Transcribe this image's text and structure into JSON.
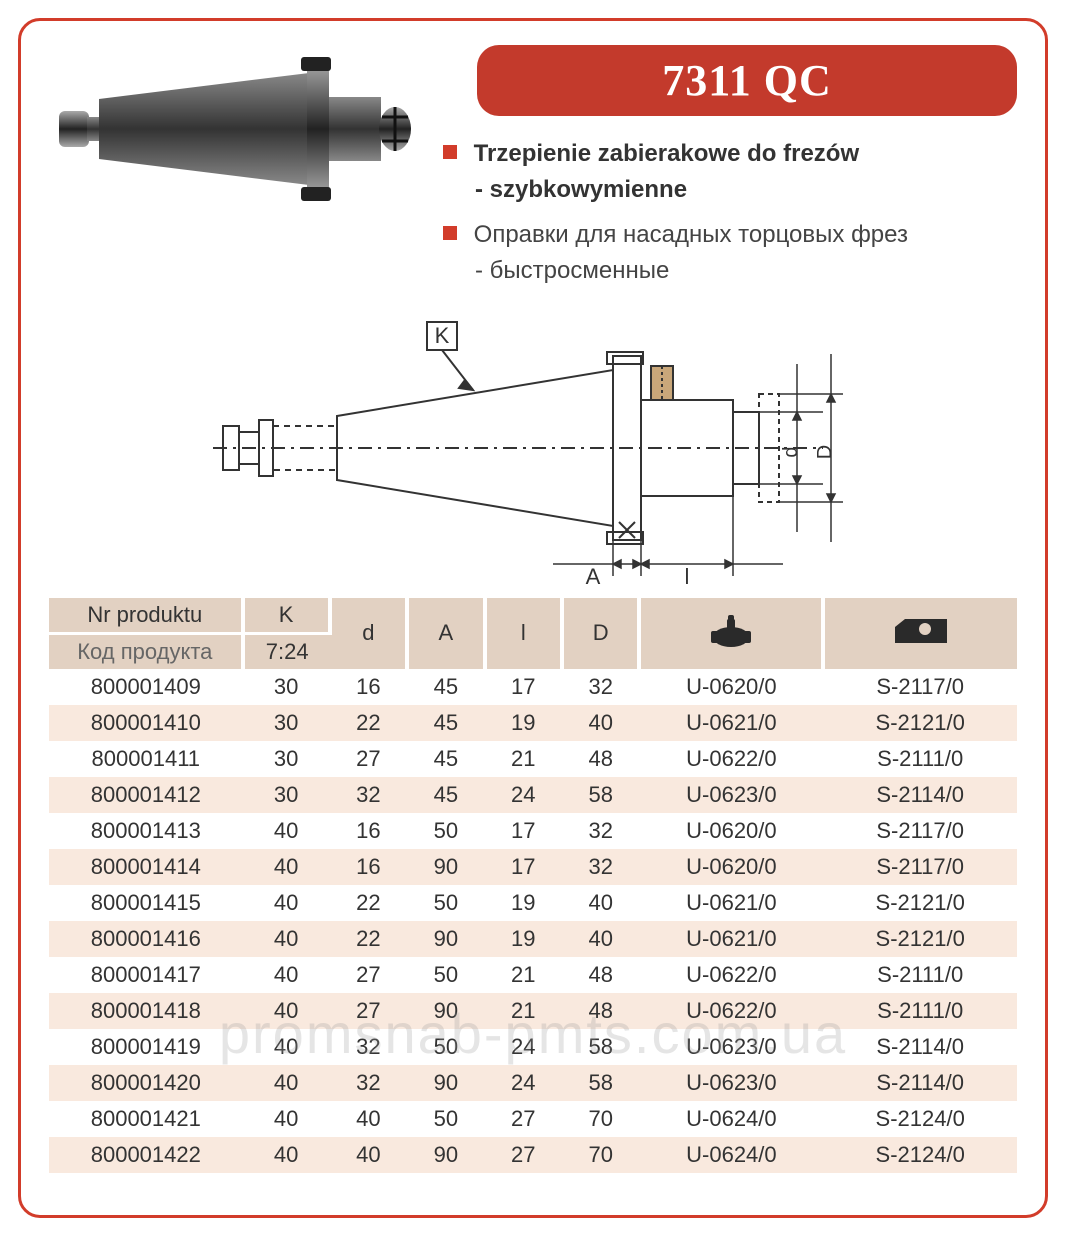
{
  "title": "7311 QC",
  "desc": {
    "line1_bold": "Trzepienie zabierakowe do frezów",
    "line1_sub": "- szybkowymienne",
    "line2": "Оправки для насадных торцовых фрез",
    "line2_sub": "- быстросменные"
  },
  "diagram": {
    "labels": {
      "K": "K",
      "A": "A",
      "l": "l",
      "d": "d",
      "D": "D"
    }
  },
  "table": {
    "headers": {
      "nr_top": "Nr produktu",
      "nr_bottom": "Код продукта",
      "k_top": "K",
      "k_bottom": "7:24",
      "d": "d",
      "A": "A",
      "l": "l",
      "D": "D"
    },
    "columns_widths_percent": [
      20,
      9,
      8,
      8,
      8,
      8,
      19,
      20
    ],
    "header_bg": "#e2d1c2",
    "row_odd_bg": "#f9e9de",
    "row_even_bg": "#ffffff",
    "rows": [
      [
        "800001409",
        "30",
        "16",
        "45",
        "17",
        "32",
        "U-0620/0",
        "S-2117/0"
      ],
      [
        "800001410",
        "30",
        "22",
        "45",
        "19",
        "40",
        "U-0621/0",
        "S-2121/0"
      ],
      [
        "800001411",
        "30",
        "27",
        "45",
        "21",
        "48",
        "U-0622/0",
        "S-2111/0"
      ],
      [
        "800001412",
        "30",
        "32",
        "45",
        "24",
        "58",
        "U-0623/0",
        "S-2114/0"
      ],
      [
        "800001413",
        "40",
        "16",
        "50",
        "17",
        "32",
        "U-0620/0",
        "S-2117/0"
      ],
      [
        "800001414",
        "40",
        "16",
        "90",
        "17",
        "32",
        "U-0620/0",
        "S-2117/0"
      ],
      [
        "800001415",
        "40",
        "22",
        "50",
        "19",
        "40",
        "U-0621/0",
        "S-2121/0"
      ],
      [
        "800001416",
        "40",
        "22",
        "90",
        "19",
        "40",
        "U-0621/0",
        "S-2121/0"
      ],
      [
        "800001417",
        "40",
        "27",
        "50",
        "21",
        "48",
        "U-0622/0",
        "S-2111/0"
      ],
      [
        "800001418",
        "40",
        "27",
        "90",
        "21",
        "48",
        "U-0622/0",
        "S-2111/0"
      ],
      [
        "800001419",
        "40",
        "32",
        "50",
        "24",
        "58",
        "U-0623/0",
        "S-2114/0"
      ],
      [
        "800001420",
        "40",
        "32",
        "90",
        "24",
        "58",
        "U-0623/0",
        "S-2114/0"
      ],
      [
        "800001421",
        "40",
        "40",
        "50",
        "27",
        "70",
        "U-0624/0",
        "S-2124/0"
      ],
      [
        "800001422",
        "40",
        "40",
        "90",
        "27",
        "70",
        "U-0624/0",
        "S-2124/0"
      ]
    ]
  },
  "watermark": "promsnab-pmts.com.ua",
  "colors": {
    "border": "#d23c2a",
    "title_bg": "#c33a2c",
    "title_fg": "#ffffff",
    "text": "#333333",
    "text_light": "#555555"
  }
}
